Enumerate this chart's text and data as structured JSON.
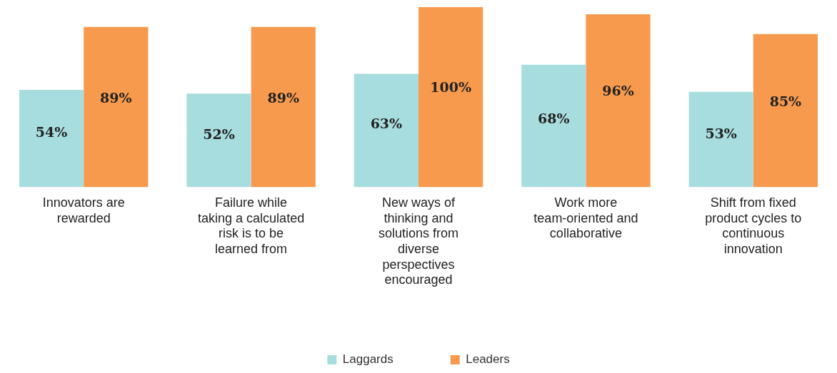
{
  "chart_data": {
    "type": "bar",
    "categories": [
      "Innovators are rewarded",
      "Failure while taking a calculated risk is to be learned from",
      "New ways of thinking and solutions from diverse perspectives encouraged",
      "Work more team-oriented and collaborative",
      "Shift from fixed product cycles to continuous innovation"
    ],
    "series": [
      {
        "name": "Laggards",
        "color": "#a8dde0",
        "values": [
          54,
          52,
          63,
          68,
          53
        ],
        "value_labels": [
          "54%",
          "52%",
          "63%",
          "68%",
          "53%"
        ]
      },
      {
        "name": "Leaders",
        "color": "#f79a4e",
        "values": [
          89,
          89,
          100,
          96,
          85
        ],
        "value_labels": [
          "89%",
          "89%",
          "100%",
          "96%",
          "85%"
        ]
      }
    ],
    "legend": "bottom",
    "grid": false
  }
}
